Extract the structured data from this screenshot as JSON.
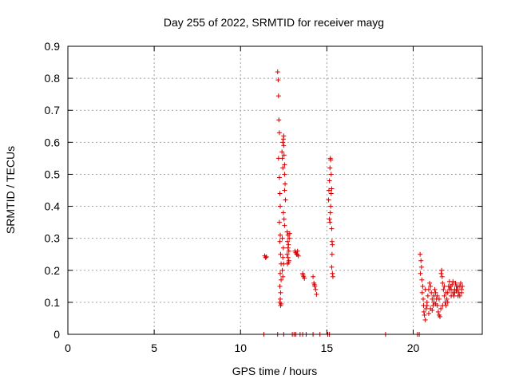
{
  "chart_data": {
    "type": "scatter",
    "title": "Day 255 of 2022, SRMTID for receiver mayg",
    "xlabel": "GPS time / hours",
    "ylabel": "SRMTID / TECUs",
    "xlim": [
      0,
      24
    ],
    "ylim": [
      0,
      0.9
    ],
    "xticks": [
      0,
      5,
      10,
      15,
      20
    ],
    "yticks": [
      0,
      0.1,
      0.2,
      0.3,
      0.4,
      0.5,
      0.6,
      0.7,
      0.8,
      0.9
    ],
    "grid": true,
    "marker": "plus",
    "point_color": "#cc0000",
    "series": [
      {
        "points": [
          [
            11.4,
            0.245
          ],
          [
            11.45,
            0.24
          ],
          [
            11.5,
            0.242
          ],
          [
            12.15,
            0.82
          ],
          [
            12.18,
            0.795
          ],
          [
            12.2,
            0.745
          ],
          [
            12.22,
            0.67
          ],
          [
            12.25,
            0.63
          ],
          [
            12.2,
            0.55
          ],
          [
            12.25,
            0.49
          ],
          [
            12.28,
            0.44
          ],
          [
            12.3,
            0.4
          ],
          [
            12.25,
            0.35
          ],
          [
            12.3,
            0.31
          ],
          [
            12.28,
            0.29
          ],
          [
            12.32,
            0.25
          ],
          [
            12.35,
            0.22
          ],
          [
            12.3,
            0.19
          ],
          [
            12.35,
            0.17
          ],
          [
            12.28,
            0.15
          ],
          [
            12.32,
            0.13
          ],
          [
            12.3,
            0.11
          ],
          [
            12.28,
            0.1
          ],
          [
            12.32,
            0.09
          ],
          [
            12.35,
            0.095
          ],
          [
            12.4,
            0.57
          ],
          [
            12.42,
            0.55
          ],
          [
            12.45,
            0.52
          ],
          [
            12.45,
            0.6
          ],
          [
            12.48,
            0.61
          ],
          [
            12.5,
            0.62
          ],
          [
            12.5,
            0.59
          ],
          [
            12.52,
            0.56
          ],
          [
            12.55,
            0.53
          ],
          [
            12.55,
            0.5
          ],
          [
            12.58,
            0.47
          ],
          [
            12.55,
            0.45
          ],
          [
            12.6,
            0.42
          ],
          [
            12.48,
            0.38
          ],
          [
            12.52,
            0.36
          ],
          [
            12.55,
            0.34
          ],
          [
            12.42,
            0.3
          ],
          [
            12.48,
            0.27
          ],
          [
            12.45,
            0.24
          ],
          [
            12.5,
            0.22
          ],
          [
            12.42,
            0.2
          ],
          [
            12.45,
            0.18
          ],
          [
            12.7,
            0.32
          ],
          [
            12.75,
            0.31
          ],
          [
            12.72,
            0.29
          ],
          [
            12.78,
            0.28
          ],
          [
            12.75,
            0.27
          ],
          [
            12.8,
            0.26
          ],
          [
            12.7,
            0.25
          ],
          [
            12.75,
            0.24
          ],
          [
            12.8,
            0.23
          ],
          [
            12.72,
            0.22
          ],
          [
            12.82,
            0.3
          ],
          [
            12.85,
            0.315
          ],
          [
            12.78,
            0.225
          ],
          [
            13.15,
            0.26
          ],
          [
            13.2,
            0.255
          ],
          [
            13.25,
            0.25
          ],
          [
            13.3,
            0.26
          ],
          [
            13.35,
            0.245
          ],
          [
            13.28,
            0.25
          ],
          [
            13.6,
            0.19
          ],
          [
            13.65,
            0.18
          ],
          [
            13.7,
            0.175
          ],
          [
            13.62,
            0.185
          ],
          [
            14.2,
            0.18
          ],
          [
            14.25,
            0.16
          ],
          [
            14.3,
            0.15
          ],
          [
            14.35,
            0.14
          ],
          [
            14.4,
            0.125
          ],
          [
            14.28,
            0.155
          ],
          [
            15.1,
            0.42
          ],
          [
            15.12,
            0.45
          ],
          [
            15.15,
            0.48
          ],
          [
            15.18,
            0.52
          ],
          [
            15.2,
            0.55
          ],
          [
            15.22,
            0.545
          ],
          [
            15.25,
            0.5
          ],
          [
            15.2,
            0.38
          ],
          [
            15.15,
            0.36
          ],
          [
            15.22,
            0.4
          ],
          [
            15.25,
            0.44
          ],
          [
            15.18,
            0.35
          ],
          [
            15.28,
            0.33
          ],
          [
            15.3,
            0.29
          ],
          [
            15.32,
            0.28
          ],
          [
            15.3,
            0.25
          ],
          [
            15.28,
            0.21
          ],
          [
            15.32,
            0.19
          ],
          [
            15.35,
            0.18
          ],
          [
            15.28,
            0.455
          ],
          [
            20.4,
            0.25
          ],
          [
            20.45,
            0.23
          ],
          [
            20.48,
            0.21
          ],
          [
            20.42,
            0.19
          ],
          [
            20.5,
            0.17
          ],
          [
            20.55,
            0.15
          ],
          [
            20.52,
            0.13
          ],
          [
            20.58,
            0.11
          ],
          [
            20.6,
            0.09
          ],
          [
            20.62,
            0.07
          ],
          [
            20.65,
            0.06
          ],
          [
            20.7,
            0.045
          ],
          [
            20.75,
            0.08
          ],
          [
            20.8,
            0.1
          ],
          [
            20.85,
            0.12
          ],
          [
            20.9,
            0.14
          ],
          [
            20.95,
            0.16
          ],
          [
            21.0,
            0.15
          ],
          [
            21.05,
            0.13
          ],
          [
            21.1,
            0.11
          ],
          [
            21.15,
            0.09
          ],
          [
            21.2,
            0.12
          ],
          [
            21.25,
            0.14
          ],
          [
            21.3,
            0.13
          ],
          [
            21.35,
            0.11
          ],
          [
            21.4,
            0.09
          ],
          [
            21.45,
            0.07
          ],
          [
            21.5,
            0.06
          ],
          [
            21.55,
            0.055
          ],
          [
            21.6,
            0.08
          ],
          [
            21.62,
            0.19
          ],
          [
            21.65,
            0.2
          ],
          [
            21.68,
            0.18
          ],
          [
            21.7,
            0.16
          ],
          [
            21.75,
            0.14
          ],
          [
            21.8,
            0.12
          ],
          [
            21.85,
            0.1
          ],
          [
            21.9,
            0.09
          ],
          [
            21.95,
            0.11
          ],
          [
            22.0,
            0.13
          ],
          [
            22.05,
            0.15
          ],
          [
            22.1,
            0.165
          ],
          [
            22.15,
            0.15
          ],
          [
            22.2,
            0.14
          ],
          [
            22.25,
            0.155
          ],
          [
            22.3,
            0.13
          ],
          [
            22.35,
            0.12
          ],
          [
            22.4,
            0.14
          ],
          [
            22.45,
            0.16
          ],
          [
            22.5,
            0.15
          ],
          [
            22.55,
            0.14
          ],
          [
            22.6,
            0.12
          ],
          [
            22.65,
            0.13
          ],
          [
            22.7,
            0.15
          ],
          [
            22.75,
            0.16
          ],
          [
            22.8,
            0.14
          ],
          [
            22.85,
            0.15
          ],
          [
            20.7,
            0.14
          ],
          [
            20.8,
            0.09
          ],
          [
            21.0,
            0.08
          ],
          [
            21.2,
            0.1
          ],
          [
            21.4,
            0.12
          ],
          [
            21.8,
            0.15
          ],
          [
            22.0,
            0.1
          ],
          [
            22.2,
            0.12
          ],
          [
            22.4,
            0.13
          ],
          [
            22.6,
            0.15
          ],
          [
            22.8,
            0.13
          ],
          [
            20.9,
            0.065
          ],
          [
            21.1,
            0.075
          ],
          [
            21.3,
            0.095
          ],
          [
            21.5,
            0.11
          ],
          [
            21.7,
            0.09
          ],
          [
            21.9,
            0.13
          ],
          [
            22.1,
            0.14
          ],
          [
            22.3,
            0.165
          ],
          [
            22.5,
            0.135
          ],
          [
            22.7,
            0.12
          ],
          [
            11.35,
            0
          ],
          [
            12.15,
            0
          ],
          [
            12.5,
            0
          ],
          [
            13.0,
            0
          ],
          [
            13.1,
            0
          ],
          [
            13.2,
            0
          ],
          [
            13.45,
            0
          ],
          [
            13.6,
            0
          ],
          [
            13.8,
            0
          ],
          [
            14.2,
            0
          ],
          [
            14.6,
            0
          ],
          [
            15.05,
            0
          ],
          [
            15.15,
            0
          ],
          [
            18.4,
            0
          ],
          [
            20.25,
            0
          ],
          [
            20.35,
            0
          ]
        ]
      }
    ]
  }
}
